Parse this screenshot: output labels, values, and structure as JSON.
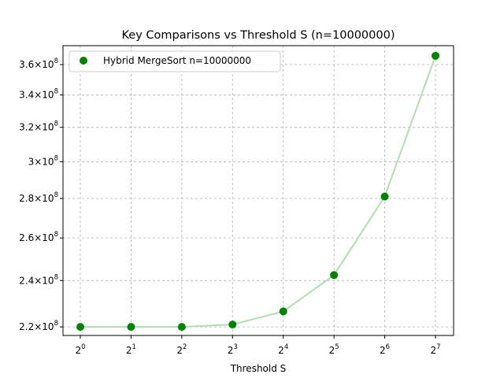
{
  "chart_data": {
    "type": "scatter",
    "title": "Key Comparisons vs Threshold S (n=10000000)",
    "xlabel": "Threshold S",
    "ylabel": "",
    "x_scale": "log2",
    "y_scale": "log",
    "x": [
      1,
      2,
      4,
      8,
      16,
      32,
      64,
      128
    ],
    "x_tick_labels": [
      {
        "base": "2",
        "exp": "0"
      },
      {
        "base": "2",
        "exp": "1"
      },
      {
        "base": "2",
        "exp": "2"
      },
      {
        "base": "2",
        "exp": "3"
      },
      {
        "base": "2",
        "exp": "4"
      },
      {
        "base": "2",
        "exp": "5"
      },
      {
        "base": "2",
        "exp": "6"
      },
      {
        "base": "2",
        "exp": "7"
      }
    ],
    "y_ticks": [
      220000000,
      240000000,
      260000000,
      280000000,
      300000000,
      320000000,
      340000000,
      360000000
    ],
    "y_tick_labels": [
      {
        "mant": "2.2",
        "base": "10",
        "exp": "8"
      },
      {
        "mant": "2.4",
        "base": "10",
        "exp": "8"
      },
      {
        "mant": "2.6",
        "base": "10",
        "exp": "8"
      },
      {
        "mant": "2.8",
        "base": "10",
        "exp": "8"
      },
      {
        "mant": "3",
        "base": "10",
        "exp": "8"
      },
      {
        "mant": "3.2",
        "base": "10",
        "exp": "8"
      },
      {
        "mant": "3.4",
        "base": "10",
        "exp": "8"
      },
      {
        "mant": "3.6",
        "base": "10",
        "exp": "8"
      }
    ],
    "ylim": [
      216500000,
      373000000
    ],
    "grid": true,
    "legend_position": "top-left",
    "series": [
      {
        "name": "Hybrid MergeSort n=10000000",
        "color": "#008000",
        "line_color": "#b2dcb2",
        "values": [
          220000000,
          220000000,
          220000000,
          221000000,
          226500000,
          242500000,
          281000000,
          366000000
        ]
      }
    ]
  }
}
